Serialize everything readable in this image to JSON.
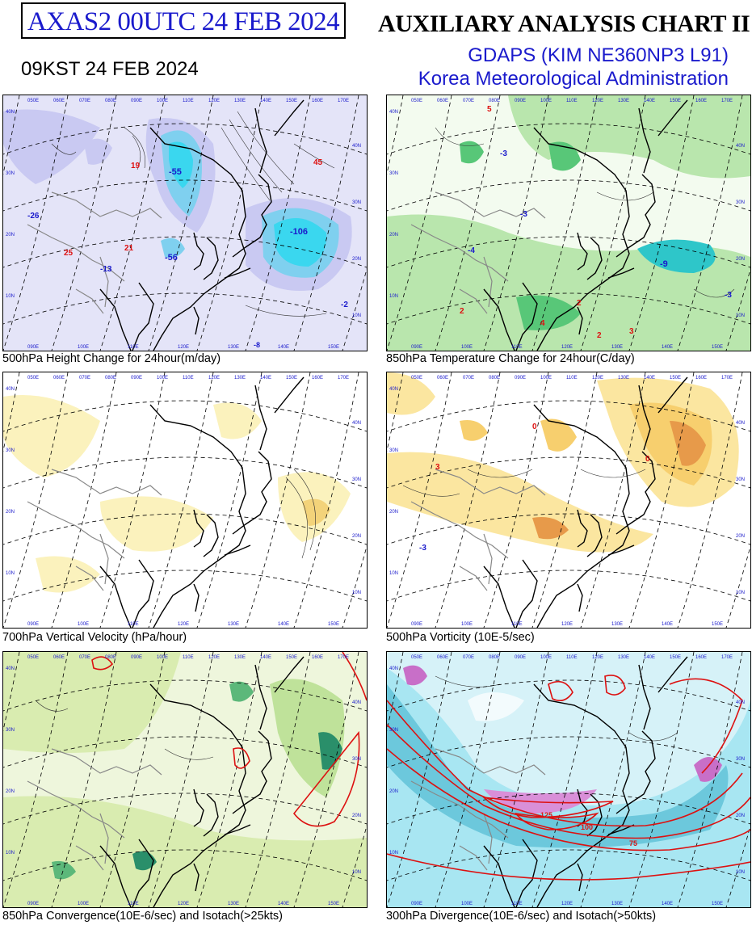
{
  "header": {
    "product_code": "AXAS2  00UTC 24 FEB 2024",
    "local_time": "09KST 24 FEB 2024",
    "title": "AUXILIARY ANALYSIS CHART II",
    "model": "GDAPS (KIM NE360NP3 L91)",
    "agency": "Korea Meteorological Administration"
  },
  "colors": {
    "header_blue": "#1a1acc",
    "height_fill": "#c9c9f2",
    "height_core": "#3ad7ef",
    "temperature_fill": "#b9e6ad",
    "velocity_fill": "#fbf2bd",
    "vorticity_fill": "#f7cf6e",
    "convergence_fill": "#d9ecb0",
    "divergence_fill": "#a8e6f2",
    "isotach": "#dd1111"
  },
  "panels": [
    {
      "caption": "500hPa Height Change for 24hour(m/day)",
      "labels": [
        "-106",
        "-55",
        "-56",
        "-26",
        "-13",
        "19",
        "25",
        "21",
        "45",
        "-2",
        "-8"
      ]
    },
    {
      "caption": "850hPa Temperature Change for 24hour(C/day)",
      "labels": [
        "-9",
        "-3",
        "-4",
        "-3",
        "5",
        "4",
        "2",
        "2",
        "3",
        "2",
        "-3"
      ]
    },
    {
      "caption": "700hPa Vertical Velocity (hPa/hour)",
      "labels": []
    },
    {
      "caption": "500hPa Vorticity (10E-5/sec)",
      "labels": [
        "0",
        "3",
        "0",
        "-3"
      ]
    },
    {
      "caption": "850hPa Convergence(10E-6/sec) and Isotach(>25kts)",
      "labels": []
    },
    {
      "caption": "300hPa Divergence(10E-6/sec) and Isotach(>50kts)",
      "labels": [
        "125",
        "100",
        "75"
      ]
    }
  ],
  "map_grid": {
    "lon_top": [
      "050E",
      "060E",
      "070E",
      "080E",
      "090E",
      "100E",
      "110E",
      "120E",
      "130E",
      "140E",
      "150E",
      "160E",
      "170E"
    ],
    "lon_bottom": [
      "090E",
      "100E",
      "110E",
      "120E",
      "130E",
      "140E",
      "150E"
    ],
    "lat_right": [
      "40N",
      "30N",
      "20N",
      "10N"
    ],
    "lat_left": [
      "40N",
      "30N",
      "20N",
      "10N"
    ]
  }
}
